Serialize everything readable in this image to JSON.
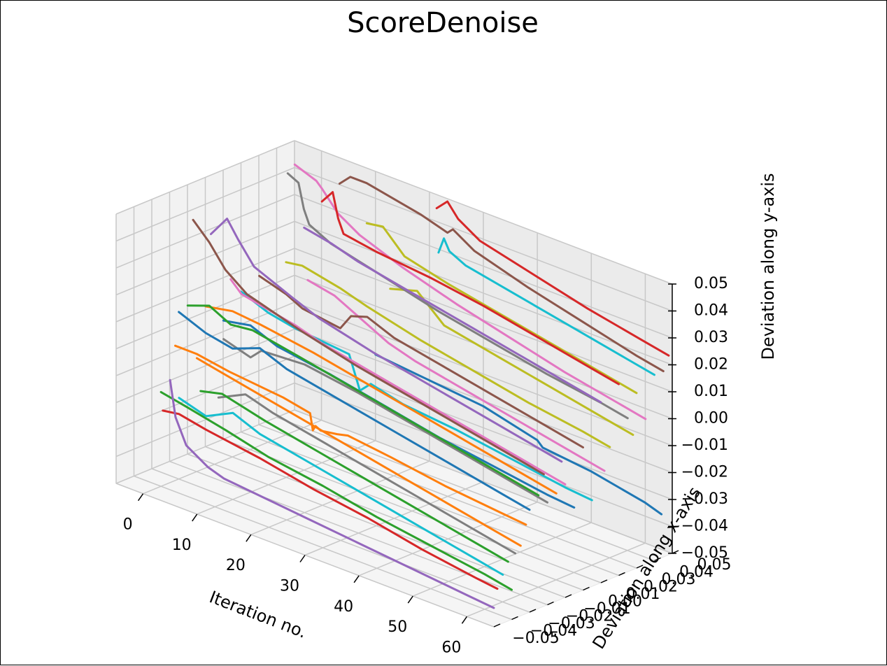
{
  "chart_data": {
    "type": "line",
    "projection": "3d",
    "title": "ScoreDenoise",
    "xlabel": "Iteration no.",
    "ylabel": "Deviation along x-axis",
    "zlabel": "Deviation along y-axis",
    "x_ticks": [
      "0",
      "10",
      "20",
      "30",
      "40",
      "50",
      "60"
    ],
    "y_ticks": [
      "−0.05",
      "−0.04",
      "−0.03",
      "−0.02",
      "−0.01",
      "0.00",
      "0.01",
      "0.02",
      "0.03",
      "0.04",
      "0.05"
    ],
    "z_ticks": [
      "−0.05",
      "−0.04",
      "−0.03",
      "−0.02",
      "−0.01",
      "0.00",
      "0.01",
      "0.02",
      "0.03",
      "0.04",
      "0.05"
    ],
    "xlim": [
      -5,
      65
    ],
    "ylim": [
      -0.05,
      0.05
    ],
    "zlim": [
      -0.05,
      0.05
    ],
    "grid": true,
    "pane_color": "#f2f2f2",
    "colors": [
      "#1f77b4",
      "#ff7f0e",
      "#2ca02c",
      "#d62728",
      "#9467bd",
      "#8c564b",
      "#e377c2",
      "#7f7f7f",
      "#bcbd22",
      "#17becf"
    ],
    "series": [
      {
        "y": 0.05,
        "points": [
          [
            10,
            -0.018
          ],
          [
            15,
            -0.019
          ],
          [
            20,
            -0.02
          ],
          [
            30,
            -0.022
          ],
          [
            40,
            -0.027
          ],
          [
            41,
            -0.029
          ],
          [
            50,
            -0.031
          ],
          [
            60,
            -0.035
          ],
          [
            63,
            -0.037
          ]
        ]
      },
      {
        "y": -0.032,
        "points": [
          [
            0,
            0.0
          ],
          [
            4,
            0.0
          ],
          [
            10,
            -0.002
          ],
          [
            20,
            -0.004
          ],
          [
            25,
            -0.006
          ],
          [
            25.5,
            -0.012
          ],
          [
            26,
            -0.01
          ],
          [
            27,
            -0.011
          ],
          [
            30,
            -0.01
          ],
          [
            32,
            -0.009
          ],
          [
            40,
            -0.011
          ],
          [
            50,
            -0.014
          ],
          [
            60,
            -0.016
          ],
          [
            65,
            -0.017
          ]
        ]
      },
      {
        "y": -0.04,
        "points": [
          [
            0,
            -0.015
          ],
          [
            5,
            -0.017
          ],
          [
            12,
            -0.02
          ],
          [
            20,
            -0.024
          ],
          [
            30,
            -0.027
          ],
          [
            40,
            -0.031
          ],
          [
            50,
            -0.034
          ],
          [
            60,
            -0.037
          ],
          [
            65,
            -0.039
          ]
        ]
      },
      {
        "y": -0.045,
        "points": [
          [
            2,
            -0.019
          ],
          [
            5,
            -0.018
          ],
          [
            10,
            -0.02
          ],
          [
            20,
            -0.023
          ],
          [
            30,
            -0.027
          ],
          [
            40,
            -0.03
          ],
          [
            50,
            -0.034
          ],
          [
            60,
            -0.037
          ],
          [
            64,
            -0.038
          ]
        ]
      },
      {
        "y": -0.05,
        "points": [
          [
            5,
            -0.004
          ],
          [
            6,
            -0.017
          ],
          [
            8,
            -0.026
          ],
          [
            12,
            -0.031
          ],
          [
            15,
            -0.033
          ],
          [
            20,
            -0.034
          ],
          [
            30,
            -0.036
          ],
          [
            40,
            -0.038
          ],
          [
            50,
            -0.04
          ],
          [
            60,
            -0.042
          ],
          [
            65,
            -0.043
          ]
        ]
      },
      {
        "y": 0.045,
        "points": [
          [
            5,
            0.043
          ],
          [
            7,
            0.047
          ],
          [
            10,
            0.047
          ],
          [
            20,
            0.043
          ],
          [
            25,
            0.04
          ],
          [
            26,
            0.042
          ],
          [
            30,
            0.037
          ],
          [
            40,
            0.031
          ],
          [
            50,
            0.026
          ],
          [
            60,
            0.021
          ],
          [
            65,
            0.019
          ]
        ]
      },
      {
        "y": 0.035,
        "points": [
          [
            0,
            0.049
          ],
          [
            4,
            0.046
          ],
          [
            5,
            0.044
          ],
          [
            8,
            0.037
          ],
          [
            12,
            0.032
          ],
          [
            20,
            0.026
          ],
          [
            30,
            0.02
          ],
          [
            40,
            0.015
          ],
          [
            50,
            0.01
          ],
          [
            60,
            0.006
          ],
          [
            65,
            0.004
          ]
        ]
      },
      {
        "y": 0.025,
        "points": [
          [
            2,
            0.05
          ],
          [
            4,
            0.048
          ],
          [
            5,
            0.039
          ],
          [
            6,
            0.034
          ],
          [
            10,
            0.03
          ],
          [
            20,
            0.025
          ],
          [
            30,
            0.02
          ],
          [
            40,
            0.016
          ],
          [
            50,
            0.012
          ],
          [
            60,
            0.009
          ],
          [
            65,
            0.007
          ]
        ]
      },
      {
        "y": 0.015,
        "points": [
          [
            5,
            0.022
          ],
          [
            8,
            0.023
          ],
          [
            15,
            0.02
          ],
          [
            20,
            0.017
          ],
          [
            30,
            0.012
          ],
          [
            40,
            0.008
          ],
          [
            50,
            0.004
          ],
          [
            60,
            0.001
          ],
          [
            65,
            -0.001
          ]
        ]
      },
      {
        "y": 0.005,
        "points": [
          [
            0,
            0.01
          ],
          [
            5,
            0.006
          ],
          [
            10,
            0.004
          ],
          [
            20,
            0.002
          ],
          [
            22,
            -0.01
          ],
          [
            24,
            -0.006
          ],
          [
            30,
            -0.009
          ],
          [
            40,
            -0.011
          ],
          [
            50,
            -0.014
          ],
          [
            60,
            -0.017
          ],
          [
            65,
            -0.018
          ]
        ]
      },
      {
        "y": -0.005,
        "points": [
          [
            0,
            0.002
          ],
          [
            5,
            0.004
          ],
          [
            10,
            0.0
          ],
          [
            20,
            -0.003
          ],
          [
            30,
            -0.007
          ],
          [
            40,
            -0.011
          ],
          [
            50,
            -0.014
          ],
          [
            60,
            -0.017
          ],
          [
            65,
            -0.018
          ]
        ]
      },
      {
        "y": -0.015,
        "points": [
          [
            0,
            0.01
          ],
          [
            5,
            0.012
          ],
          [
            10,
            0.011
          ],
          [
            20,
            0.008
          ],
          [
            30,
            0.004
          ],
          [
            40,
            0.0
          ],
          [
            50,
            -0.004
          ],
          [
            60,
            -0.008
          ],
          [
            65,
            -0.01
          ]
        ]
      },
      {
        "y": -0.025,
        "points": [
          [
            0,
            0.013
          ],
          [
            4,
            0.016
          ],
          [
            8,
            0.012
          ],
          [
            12,
            0.013
          ],
          [
            20,
            0.01
          ],
          [
            30,
            0.006
          ],
          [
            40,
            0.002
          ],
          [
            50,
            -0.002
          ],
          [
            60,
            -0.006
          ],
          [
            65,
            -0.008
          ]
        ]
      },
      {
        "y": 0.02,
        "points": [
          [
            10,
            0.047
          ],
          [
            12,
            0.052
          ],
          [
            13,
            0.043
          ],
          [
            14,
            0.038
          ],
          [
            20,
            0.036
          ],
          [
            30,
            0.034
          ],
          [
            40,
            0.031
          ],
          [
            50,
            0.027
          ],
          [
            60,
            0.023
          ],
          [
            65,
            0.021
          ]
        ]
      },
      {
        "y": 0.01,
        "points": [
          [
            10,
            0.04
          ],
          [
            15,
            0.038
          ],
          [
            20,
            0.035
          ],
          [
            30,
            0.031
          ],
          [
            40,
            0.027
          ],
          [
            50,
            0.023
          ],
          [
            60,
            0.019
          ],
          [
            65,
            0.017
          ]
        ]
      },
      {
        "y": 0.0,
        "points": [
          [
            5,
            0.021
          ],
          [
            10,
            0.018
          ],
          [
            13,
            0.015
          ],
          [
            20,
            0.013
          ],
          [
            22,
            0.019
          ],
          [
            25,
            0.021
          ],
          [
            30,
            0.017
          ],
          [
            40,
            0.013
          ],
          [
            50,
            0.009
          ],
          [
            60,
            0.005
          ],
          [
            65,
            0.003
          ]
        ]
      },
      {
        "y": -0.01,
        "points": [
          [
            3,
            0.021
          ],
          [
            5,
            0.017
          ],
          [
            10,
            0.015
          ],
          [
            15,
            0.013
          ],
          [
            20,
            0.01
          ],
          [
            30,
            0.006
          ],
          [
            40,
            0.002
          ],
          [
            50,
            -0.002
          ],
          [
            60,
            -0.006
          ],
          [
            65,
            -0.008
          ]
        ]
      },
      {
        "y": -0.02,
        "points": [
          [
            5,
            0.003
          ],
          [
            10,
            0.0
          ],
          [
            12,
            0.004
          ],
          [
            20,
            0.005
          ],
          [
            30,
            0.002
          ],
          [
            40,
            -0.002
          ],
          [
            50,
            -0.006
          ],
          [
            60,
            -0.01
          ],
          [
            65,
            -0.012
          ]
        ]
      },
      {
        "y": 0.03,
        "points": [
          [
            15,
            0.04
          ],
          [
            18,
            0.041
          ],
          [
            20,
            0.037
          ],
          [
            22,
            0.033
          ],
          [
            30,
            0.029
          ],
          [
            40,
            0.025
          ],
          [
            50,
            0.021
          ],
          [
            60,
            0.017
          ],
          [
            65,
            0.015
          ]
        ]
      },
      {
        "y": 0.04,
        "points": [
          [
            25,
            0.034
          ],
          [
            26,
            0.04
          ],
          [
            27,
            0.036
          ],
          [
            30,
            0.033
          ],
          [
            40,
            0.029
          ],
          [
            50,
            0.025
          ],
          [
            60,
            0.021
          ],
          [
            65,
            0.019
          ]
        ]
      },
      {
        "y": -0.03,
        "points": [
          [
            0,
            0.012
          ],
          [
            5,
            0.008
          ],
          [
            10,
            0.006
          ],
          [
            15,
            0.01
          ],
          [
            20,
            0.006
          ],
          [
            30,
            0.002
          ],
          [
            40,
            -0.002
          ],
          [
            50,
            -0.006
          ],
          [
            60,
            -0.01
          ],
          [
            65,
            -0.012
          ]
        ]
      },
      {
        "y": -0.035,
        "points": [
          [
            5,
            0.0
          ],
          [
            10,
            -0.002
          ],
          [
            20,
            -0.006
          ],
          [
            30,
            -0.01
          ],
          [
            40,
            -0.014
          ],
          [
            50,
            -0.018
          ],
          [
            60,
            -0.022
          ],
          [
            65,
            -0.024
          ]
        ]
      },
      {
        "y": -0.042,
        "points": [
          [
            8,
            -0.008
          ],
          [
            12,
            -0.006
          ],
          [
            20,
            -0.01
          ],
          [
            30,
            -0.014
          ],
          [
            40,
            -0.018
          ],
          [
            50,
            -0.022
          ],
          [
            60,
            -0.026
          ],
          [
            65,
            -0.028
          ]
        ]
      },
      {
        "y": 0.048,
        "points": [
          [
            22,
            0.046
          ],
          [
            24,
            0.05
          ],
          [
            26,
            0.045
          ],
          [
            30,
            0.04
          ],
          [
            40,
            0.035
          ],
          [
            50,
            0.03
          ],
          [
            60,
            0.026
          ],
          [
            65,
            0.024
          ]
        ]
      },
      {
        "y": -0.012,
        "points": [
          [
            0,
            0.036
          ],
          [
            3,
            0.044
          ],
          [
            5,
            0.038
          ],
          [
            8,
            0.03
          ],
          [
            15,
            0.024
          ],
          [
            20,
            0.02
          ],
          [
            30,
            0.015
          ],
          [
            40,
            0.011
          ],
          [
            50,
            0.007
          ],
          [
            60,
            0.003
          ],
          [
            65,
            0.001
          ]
        ]
      },
      {
        "y": -0.022,
        "points": [
          [
            0,
            0.044
          ],
          [
            3,
            0.038
          ],
          [
            6,
            0.03
          ],
          [
            10,
            0.024
          ],
          [
            20,
            0.018
          ],
          [
            30,
            0.013
          ],
          [
            40,
            0.009
          ],
          [
            50,
            0.005
          ],
          [
            60,
            0.001
          ],
          [
            65,
            -0.001
          ]
        ]
      },
      {
        "y": 0.012,
        "points": [
          [
            10,
            0.02
          ],
          [
            15,
            0.018
          ],
          [
            20,
            0.013
          ],
          [
            25,
            0.008
          ],
          [
            30,
            0.005
          ],
          [
            40,
            0.001
          ],
          [
            50,
            -0.003
          ],
          [
            60,
            -0.007
          ],
          [
            65,
            -0.009
          ]
        ]
      },
      {
        "y": -0.038,
        "points": [
          [
            10,
            -0.01
          ],
          [
            15,
            -0.005
          ],
          [
            20,
            -0.008
          ],
          [
            30,
            -0.012
          ],
          [
            40,
            -0.016
          ],
          [
            50,
            -0.02
          ],
          [
            60,
            -0.024
          ],
          [
            65,
            -0.026
          ]
        ]
      },
      {
        "y": 0.028,
        "points": [
          [
            20,
            0.02
          ],
          [
            25,
            0.023
          ],
          [
            30,
            0.014
          ],
          [
            40,
            0.01
          ],
          [
            50,
            0.006
          ],
          [
            60,
            0.002
          ],
          [
            65,
            0.0
          ]
        ]
      },
      {
        "y": -0.045,
        "points": [
          [
            5,
            -0.012
          ],
          [
            10,
            -0.015
          ],
          [
            15,
            -0.01
          ],
          [
            20,
            -0.014
          ],
          [
            30,
            -0.018
          ],
          [
            40,
            -0.022
          ],
          [
            50,
            -0.026
          ],
          [
            60,
            -0.03
          ],
          [
            65,
            -0.032
          ]
        ]
      }
    ]
  }
}
